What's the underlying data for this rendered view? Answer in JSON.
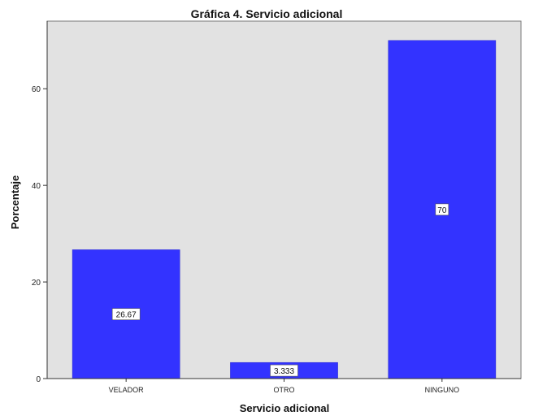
{
  "chart_data": {
    "type": "bar",
    "title": "Gráfica 4. Servicio adicional",
    "xlabel": "Servicio adicional",
    "ylabel": "Porcentaje",
    "categories": [
      "VELADOR",
      "OTRO",
      "NINGUNO"
    ],
    "values": [
      26.67,
      3.333,
      70
    ],
    "data_labels": [
      "26.67",
      "3.333",
      "70"
    ],
    "ylim": [
      0,
      74
    ],
    "yticks": [
      0,
      20,
      40,
      60
    ],
    "grid": false,
    "legend": "none",
    "colors": {
      "bar": "#3333ff",
      "plot_background": "#e2e2e2",
      "label_background": "#ffffff"
    }
  }
}
